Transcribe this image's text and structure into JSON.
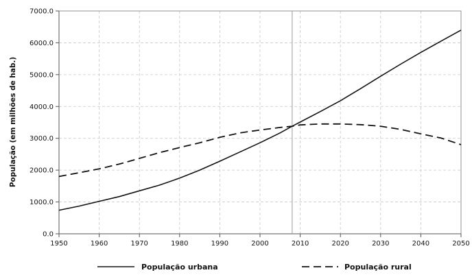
{
  "chart_data": {
    "type": "line",
    "title": "",
    "xlabel": "",
    "ylabel": "População (em milhões de hab.)",
    "xlim": [
      1950,
      2050
    ],
    "ylim": [
      0,
      7000
    ],
    "x_ticks": [
      1950,
      1960,
      1970,
      1980,
      1990,
      2000,
      2010,
      2020,
      2030,
      2040,
      2050
    ],
    "x_tick_labels": [
      "1950",
      "1960",
      "1970",
      "1980",
      "1990",
      "2000",
      "2010",
      "2020",
      "2030",
      "2040",
      "2050"
    ],
    "y_ticks": [
      0,
      1000,
      2000,
      3000,
      4000,
      5000,
      6000,
      7000
    ],
    "y_tick_labels": [
      "0.0",
      "1000.0",
      "2000.0",
      "3000.0",
      "4000.0",
      "5000.0",
      "6000.0",
      "7000.0"
    ],
    "grid": true,
    "reference_line_x": 2008,
    "legend_position": "bottom",
    "series": [
      {
        "name": "População urbana",
        "style": "solid",
        "x": [
          1950,
          1955,
          1960,
          1965,
          1970,
          1975,
          1980,
          1985,
          1990,
          1995,
          2000,
          2005,
          2008,
          2010,
          2015,
          2020,
          2025,
          2030,
          2035,
          2040,
          2045,
          2050
        ],
        "values": [
          740,
          870,
          1020,
          1170,
          1350,
          1530,
          1750,
          2000,
          2280,
          2570,
          2860,
          3170,
          3380,
          3510,
          3840,
          4180,
          4560,
          4950,
          5330,
          5700,
          6050,
          6400
        ]
      },
      {
        "name": "População rural",
        "style": "dashed",
        "x": [
          1950,
          1955,
          1960,
          1965,
          1970,
          1975,
          1980,
          1985,
          1990,
          1995,
          2000,
          2005,
          2008,
          2010,
          2015,
          2020,
          2025,
          2030,
          2035,
          2040,
          2045,
          2050
        ],
        "values": [
          1800,
          1920,
          2040,
          2190,
          2370,
          2550,
          2710,
          2860,
          3030,
          3170,
          3260,
          3340,
          3380,
          3420,
          3450,
          3450,
          3430,
          3380,
          3280,
          3140,
          3010,
          2800
        ]
      }
    ]
  }
}
